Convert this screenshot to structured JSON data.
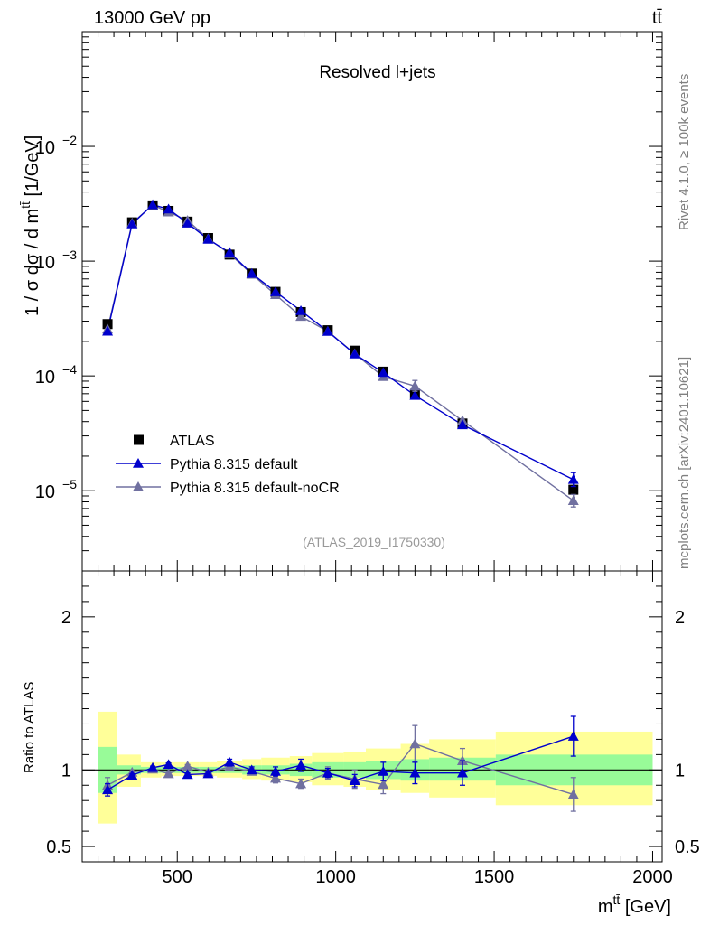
{
  "header": {
    "energy_label": "13000 GeV pp",
    "process_label": "tt̄"
  },
  "side_text": {
    "rivet": "Rivet 4.1.0, ≥ 100k events",
    "mcplots": "mcplots.cern.ch [arXiv:2401.10621]"
  },
  "chart_data": [
    {
      "type": "scatter",
      "title": "Resolved l+jets",
      "analysis_id": "(ATLAS_2019_I1750330)",
      "ylabel": "1 / σ dσ / d m^{tt̄} [1/GeV]",
      "xlim": [
        200,
        2030
      ],
      "ylim": [
        2e-06,
        0.1
      ],
      "yscale": "log",
      "y_ticks": [
        {
          "value": 1e-05,
          "base": "10",
          "exp": "−5"
        },
        {
          "value": 0.0001,
          "base": "10",
          "exp": "−4"
        },
        {
          "value": 0.001,
          "base": "10",
          "exp": "−3"
        },
        {
          "value": 0.01,
          "base": "10",
          "exp": "−2"
        }
      ],
      "legend": {
        "position": "lower-left",
        "entries": [
          "ATLAS",
          "Pythia 8.315 default",
          "Pythia 8.315 default-noCR"
        ]
      },
      "x": [
        280,
        357.5,
        422.5,
        472.5,
        532.5,
        597.5,
        665,
        735,
        810,
        890,
        975,
        1060,
        1150,
        1250,
        1400,
        1750
      ],
      "bin_edges": [
        250,
        310,
        385,
        450,
        495,
        570,
        625,
        705,
        765,
        855,
        925,
        1025,
        1095,
        1205,
        1295,
        1505,
        2000
      ],
      "series": [
        {
          "name": "ATLAS",
          "color": "#000000",
          "values": [
            0.000283,
            0.00218,
            0.00306,
            0.00274,
            0.00221,
            0.00159,
            0.00114,
            0.00078,
            0.00054,
            0.00036,
            0.00025,
            0.000166,
            0.000109,
            6.95e-05,
            3.85e-05,
            1.02e-05
          ]
        },
        {
          "name": "Pythia 8.315 default",
          "color": "#0000cc",
          "values": [
            0.000245,
            0.00211,
            0.0031,
            0.00284,
            0.00214,
            0.00155,
            0.00119,
            0.00078,
            0.00054,
            0.00037,
            0.000244,
            0.000155,
            0.000107,
            6.75e-05,
            3.75e-05,
            1.25e-05
          ]
        },
        {
          "name": "Pythia 8.315 default-noCR",
          "color": "#7070a0",
          "values": [
            0.000255,
            0.00215,
            0.00308,
            0.00268,
            0.00226,
            0.00157,
            0.00116,
            0.00077,
            0.00051,
            0.00033,
            0.000245,
            0.000156,
            9.85e-05,
            8.15e-05,
            4.08e-05,
            8.2e-06
          ]
        }
      ]
    },
    {
      "type": "scatter",
      "ylabel": "Ratio to ATLAS",
      "xlabel": "m^{tt̄} [GeV]",
      "xlim": [
        200,
        2030
      ],
      "ylim": [
        0.4,
        2.3
      ],
      "x_ticks": [
        "500",
        "1000",
        "1500",
        "2000"
      ],
      "y_ticks": [
        "0.5",
        "1",
        "2"
      ],
      "reference_line": 1,
      "x": [
        280,
        357.5,
        422.5,
        472.5,
        532.5,
        597.5,
        665,
        735,
        810,
        890,
        975,
        1060,
        1150,
        1250,
        1400,
        1750
      ],
      "bin_edges": [
        250,
        310,
        385,
        450,
        495,
        570,
        625,
        705,
        765,
        855,
        925,
        1025,
        1095,
        1205,
        1295,
        1505,
        2000
      ],
      "uncertainty_bands": {
        "inner_color": "#98fb98",
        "outer_color": "#ffff99",
        "inner_low": [
          0.85,
          0.97,
          0.98,
          0.98,
          0.98,
          0.98,
          0.98,
          0.97,
          0.97,
          0.96,
          0.95,
          0.95,
          0.94,
          0.93,
          0.93,
          0.9
        ],
        "inner_high": [
          1.15,
          1.03,
          1.02,
          1.02,
          1.02,
          1.02,
          1.02,
          1.03,
          1.03,
          1.04,
          1.05,
          1.05,
          1.06,
          1.07,
          1.08,
          1.1
        ],
        "outer_low": [
          0.65,
          0.89,
          0.95,
          0.96,
          0.96,
          0.96,
          0.95,
          0.94,
          0.93,
          0.92,
          0.9,
          0.89,
          0.87,
          0.85,
          0.82,
          0.77
        ],
        "outer_high": [
          1.38,
          1.1,
          1.05,
          1.05,
          1.05,
          1.05,
          1.06,
          1.07,
          1.08,
          1.09,
          1.11,
          1.12,
          1.14,
          1.17,
          1.2,
          1.25
        ]
      },
      "series": [
        {
          "name": "Pythia 8.315 default",
          "color": "#0000cc",
          "values": [
            0.87,
            0.965,
            1.015,
            1.035,
            0.97,
            0.975,
            1.05,
            1.0,
            0.99,
            1.03,
            0.98,
            0.93,
            0.99,
            0.98,
            0.98,
            1.22
          ],
          "errors": [
            0.04,
            0.01,
            0.01,
            0.01,
            0.01,
            0.01,
            0.02,
            0.02,
            0.03,
            0.04,
            0.03,
            0.04,
            0.06,
            0.07,
            0.08,
            0.13
          ]
        },
        {
          "name": "Pythia 8.315 default-noCR",
          "color": "#7070a0",
          "values": [
            0.9,
            0.985,
            1.005,
            0.975,
            1.025,
            0.985,
            1.02,
            0.99,
            0.945,
            0.91,
            0.98,
            0.94,
            0.905,
            1.17,
            1.06,
            0.84
          ],
          "errors": [
            0.05,
            0.01,
            0.01,
            0.01,
            0.01,
            0.01,
            0.02,
            0.02,
            0.03,
            0.03,
            0.04,
            0.06,
            0.06,
            0.12,
            0.08,
            0.11
          ]
        }
      ]
    }
  ]
}
